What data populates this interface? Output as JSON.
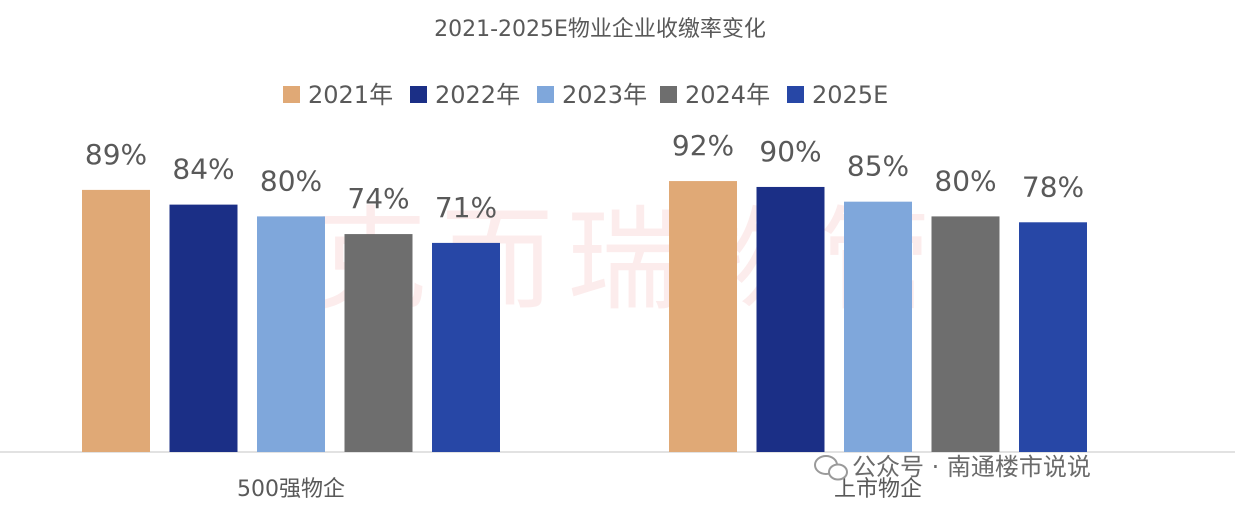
{
  "chart_data": {
    "type": "bar",
    "title": "2021-2025E物业企业收缴率变化",
    "categories": [
      "500强物企",
      "上市物企"
    ],
    "series": [
      {
        "name": "2021年",
        "color": "#E0A976",
        "values": [
          89,
          92
        ],
        "value_labels": [
          "89%",
          "92%"
        ]
      },
      {
        "name": "2022年",
        "color": "#1B2F86",
        "values": [
          84,
          90
        ],
        "value_labels": [
          "84%",
          "90%"
        ]
      },
      {
        "name": "2023年",
        "color": "#7FA7DB",
        "values": [
          80,
          85
        ],
        "value_labels": [
          "80%",
          "85%"
        ]
      },
      {
        "name": "2024年",
        "color": "#6E6E6E",
        "values": [
          74,
          80
        ],
        "value_labels": [
          "74%",
          "80%"
        ]
      },
      {
        "name": "2025E",
        "color": "#2747A6",
        "values": [
          71,
          78
        ],
        "value_labels": [
          "71%",
          "78%"
        ]
      }
    ],
    "ylim": [
      0,
      100
    ],
    "legend": "top",
    "watermark": "克而瑞物管",
    "footer": "公众号 · 南通楼市说说"
  }
}
